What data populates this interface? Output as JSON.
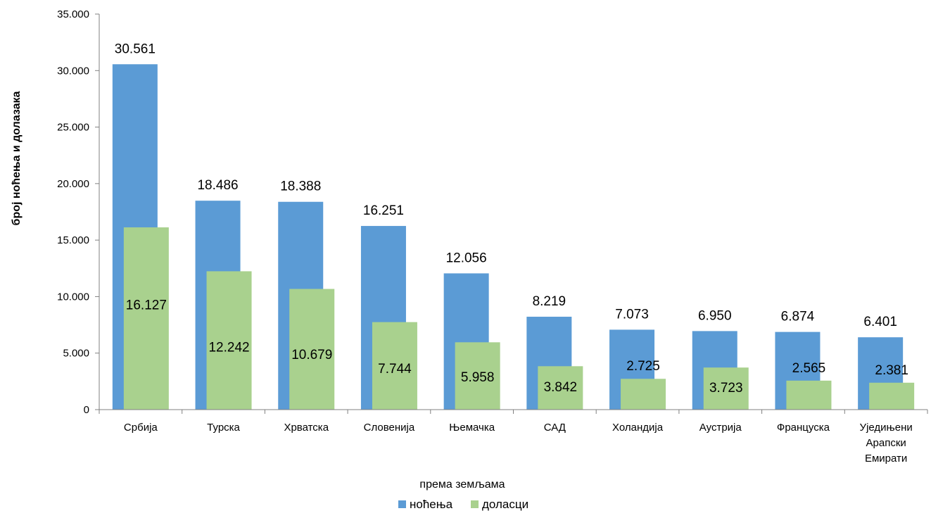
{
  "chart_data": {
    "type": "bar",
    "title": "",
    "xlabel": "према земљама",
    "ylabel": "број ноћења и долазака",
    "ylim": [
      0,
      35000
    ],
    "y_ticks": [
      0,
      5000,
      10000,
      15000,
      20000,
      25000,
      30000,
      35000
    ],
    "y_tick_labels": [
      "0",
      "5.000",
      "10.000",
      "15.000",
      "20.000",
      "25.000",
      "30.000",
      "35.000"
    ],
    "categories": [
      [
        "Србија"
      ],
      [
        "Турска"
      ],
      [
        "Хрватска"
      ],
      [
        "Словенија"
      ],
      [
        "Њемачка"
      ],
      [
        "САД"
      ],
      [
        "Холандија"
      ],
      [
        "Аустрија"
      ],
      [
        "Француска"
      ],
      [
        "Уједињени",
        "Арапски",
        "Емирати"
      ]
    ],
    "series": [
      {
        "name": "ноћења",
        "color": "#5b9bd5",
        "values": [
          30561,
          18486,
          18388,
          16251,
          12056,
          8219,
          7073,
          6950,
          6874,
          6401
        ],
        "labels": [
          "30.561",
          "18.486",
          "18.388",
          "16.251",
          "12.056",
          "8.219",
          "7.073",
          "6.950",
          "6.874",
          "6.401"
        ]
      },
      {
        "name": "доласци",
        "color": "#a9d18e",
        "values": [
          16127,
          12242,
          10679,
          7744,
          5958,
          3842,
          2725,
          3723,
          2565,
          2381
        ],
        "labels": [
          "16.127",
          "12.242",
          "10.679",
          "7.744",
          "5.958",
          "3.842",
          "2.725",
          "3.723",
          "2.565",
          "2.381"
        ]
      }
    ],
    "legend_position": "bottom",
    "grid": false
  }
}
